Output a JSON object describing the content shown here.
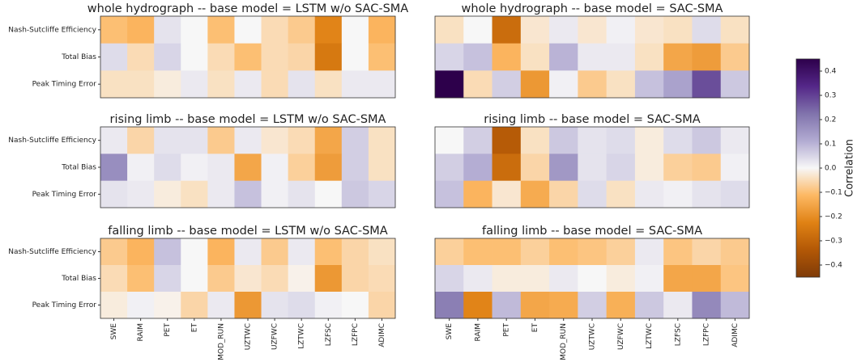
{
  "chart_data": [
    {
      "type": "heatmap",
      "title": "whole hydrograph -- base model = LSTM w/o SAC-SMA",
      "rows": [
        "Nash-Sutcliffe Efficiency",
        "Total Bias",
        "Peak Timing Error"
      ],
      "values": [
        [
          -0.1,
          -0.12,
          0.03,
          0,
          -0.1,
          0,
          -0.05,
          -0.08,
          -0.22,
          0,
          -0.12
        ],
        [
          0.04,
          -0.05,
          0.05,
          0,
          -0.05,
          -0.1,
          -0.05,
          -0.06,
          -0.25,
          0,
          -0.1
        ],
        [
          -0.04,
          -0.04,
          -0.02,
          0.02,
          -0.04,
          0.02,
          -0.05,
          0.03,
          -0.04,
          0.02,
          0.02
        ]
      ]
    },
    {
      "type": "heatmap",
      "title": "whole hydrograph -- base model = SAC-SMA",
      "values": [
        [
          -0.04,
          0,
          -0.28,
          -0.03,
          0.02,
          -0.03,
          0.01,
          -0.03,
          -0.04,
          0.04,
          -0.04
        ],
        [
          0.05,
          0.08,
          -0.12,
          -0.04,
          0.1,
          0.02,
          0.02,
          -0.04,
          -0.15,
          -0.17,
          -0.08
        ],
        [
          0.45,
          -0.05,
          0.06,
          -0.18,
          0.01,
          -0.08,
          -0.04,
          0.08,
          0.13,
          0.28,
          0.07
        ]
      ]
    },
    {
      "type": "heatmap",
      "title": "rising limb -- base model = LSTM w/o SAC-SMA",
      "rows": [
        "Nash-Sutcliffe Efficiency",
        "Total Bias",
        "Peak Timing Error"
      ],
      "values": [
        [
          0.02,
          -0.06,
          0.03,
          0.03,
          -0.08,
          0.02,
          -0.03,
          -0.05,
          -0.15,
          0.06,
          -0.04
        ],
        [
          0.17,
          0.01,
          0.04,
          0.01,
          0.02,
          -0.15,
          0.01,
          -0.07,
          -0.17,
          0.06,
          -0.04
        ],
        [
          0.03,
          0.02,
          -0.02,
          -0.04,
          0.02,
          0.08,
          0.01,
          0.03,
          0,
          0.07,
          0.05
        ]
      ]
    },
    {
      "type": "heatmap",
      "title": "rising limb -- base model = SAC-SMA",
      "values": [
        [
          0,
          0.06,
          -0.33,
          -0.04,
          0.07,
          0.03,
          0.04,
          -0.02,
          0.04,
          0.07,
          0.02
        ],
        [
          0.06,
          0.11,
          -0.28,
          -0.06,
          0.15,
          0.03,
          0.05,
          -0.02,
          -0.07,
          -0.08,
          0.01
        ],
        [
          0.08,
          -0.12,
          -0.03,
          -0.14,
          -0.06,
          0.04,
          -0.04,
          0.02,
          0.01,
          0.03,
          0.04
        ]
      ]
    },
    {
      "type": "heatmap",
      "title": "falling limb -- base model = LSTM w/o SAC-SMA",
      "rows": [
        "Nash-Sutcliffe Efficiency",
        "Total Bias",
        "Peak Timing Error"
      ],
      "categories": [
        "SWE",
        "RAIM",
        "PET",
        "ET",
        "MOD_RUN",
        "UZTWC",
        "UZFWC",
        "LZTWC",
        "LZFSC",
        "LZFPC",
        "ADIMC"
      ],
      "values": [
        [
          -0.08,
          -0.12,
          0.08,
          0,
          -0.12,
          0.02,
          -0.08,
          0.02,
          -0.1,
          -0.06,
          -0.04
        ],
        [
          -0.05,
          -0.1,
          0.05,
          0,
          -0.08,
          -0.03,
          -0.05,
          -0.01,
          -0.18,
          -0.06,
          -0.05
        ],
        [
          -0.02,
          0.01,
          -0.01,
          -0.06,
          0.02,
          -0.18,
          0.03,
          0.04,
          0.01,
          0,
          -0.06
        ]
      ]
    },
    {
      "type": "heatmap",
      "title": "falling limb -- base model = SAC-SMA",
      "categories": [
        "SWE",
        "RAIM",
        "PET",
        "ET",
        "MOD_RUN",
        "UZTWC",
        "UZFWC",
        "LZTWC",
        "LZFSC",
        "LZFPC",
        "ADIMC"
      ],
      "values": [
        [
          -0.07,
          -0.1,
          -0.1,
          -0.07,
          -0.1,
          -0.09,
          -0.07,
          0.02,
          -0.09,
          -0.06,
          -0.08
        ],
        [
          0.05,
          0.02,
          -0.02,
          -0.02,
          0.02,
          0,
          -0.02,
          0.01,
          -0.15,
          -0.15,
          -0.09
        ],
        [
          0.2,
          -0.22,
          0.09,
          -0.15,
          -0.14,
          0.06,
          -0.13,
          0.07,
          0.02,
          0.18,
          0.09
        ]
      ]
    }
  ],
  "colorbar": {
    "label": "Correlation",
    "cmap": "PuOr",
    "zlim": [
      -0.45,
      0.45
    ],
    "ticks": [
      0.4,
      0.3,
      0.2,
      0.1,
      {
        "value": 0,
        "label": "0.0"
      },
      {
        "value": -0.1,
        "label": "−0.1"
      },
      {
        "value": -0.2,
        "label": "−0.2"
      },
      {
        "value": -0.3,
        "label": "−0.3"
      },
      {
        "value": -0.4,
        "label": "−0.4"
      }
    ]
  }
}
